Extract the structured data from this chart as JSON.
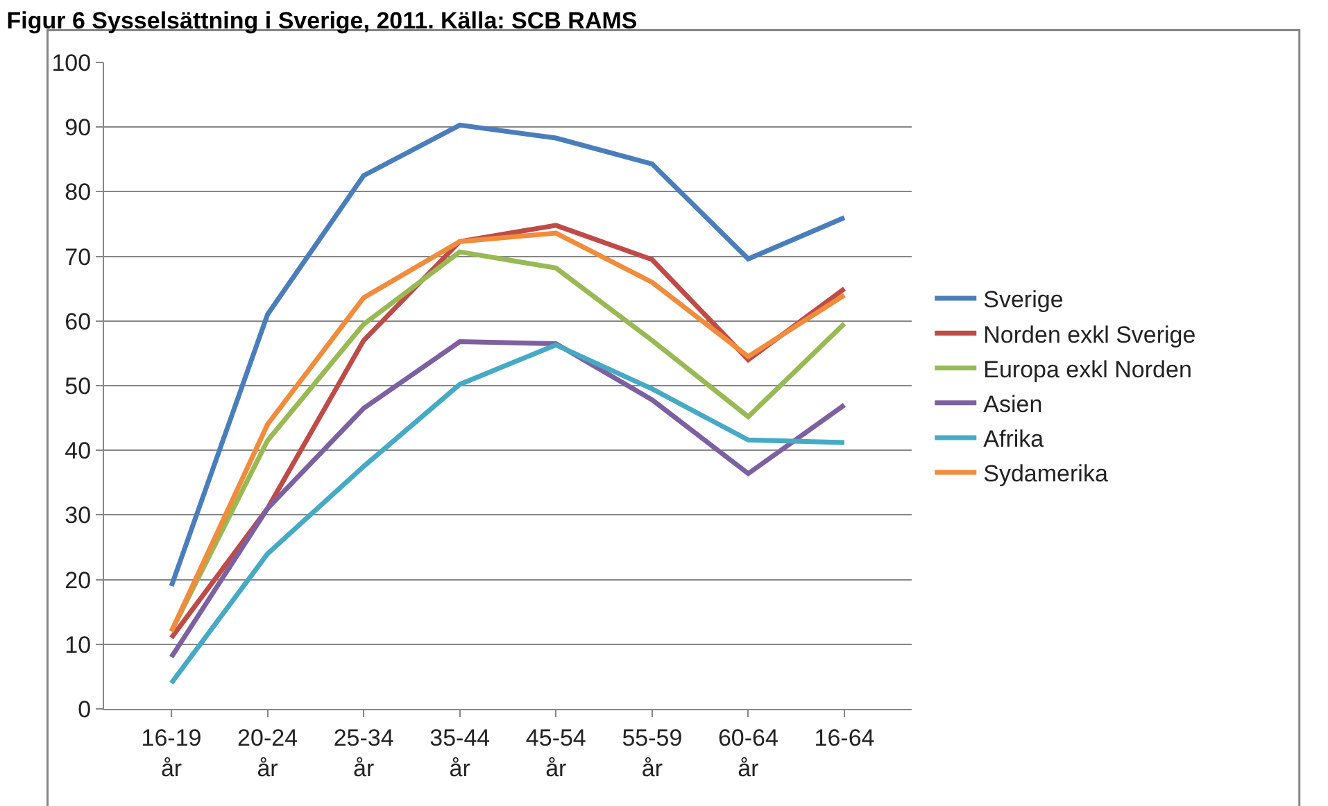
{
  "chart_data": {
    "type": "line",
    "title": "Figur 6 Sysselsättning i Sverige, 2011. Källa: SCB RAMS",
    "categories": [
      "16-19\når",
      "20-24\når",
      "25-34\når",
      "35-44\når",
      "45-54\når",
      "55-59\når",
      "60-64\når",
      "16-64"
    ],
    "series": [
      {
        "name": "Sverige",
        "color": "#4a7ebb",
        "values": [
          19,
          61,
          82.5,
          90.3,
          88.3,
          84.3,
          69.6,
          76
        ]
      },
      {
        "name": "Norden exkl Sverige",
        "color": "#be4b48",
        "values": [
          11,
          31,
          57,
          72.3,
          74.8,
          69.5,
          54,
          65
        ]
      },
      {
        "name": "Europa exkl Norden",
        "color": "#98b954",
        "values": [
          12,
          41.5,
          59.5,
          70.7,
          68.2,
          57,
          45.2,
          59.6
        ]
      },
      {
        "name": "Asien",
        "color": "#7d60a0",
        "values": [
          8,
          31,
          46.5,
          56.8,
          56.5,
          47.8,
          36.4,
          47
        ]
      },
      {
        "name": "Afrika",
        "color": "#46aac5",
        "values": [
          4,
          24,
          37.5,
          50.2,
          56.3,
          49.5,
          41.6,
          41.2
        ]
      },
      {
        "name": "Sydamerika",
        "color": "#f08c3c",
        "values": [
          12,
          44,
          63.6,
          72.3,
          73.6,
          66,
          54.5,
          64
        ]
      }
    ],
    "ylim": [
      0,
      100
    ],
    "yticks": [
      0,
      10,
      20,
      30,
      40,
      50,
      60,
      70,
      80,
      90,
      100
    ],
    "grid": "y",
    "legend": "right",
    "marker": "none",
    "line_style": "solid"
  }
}
